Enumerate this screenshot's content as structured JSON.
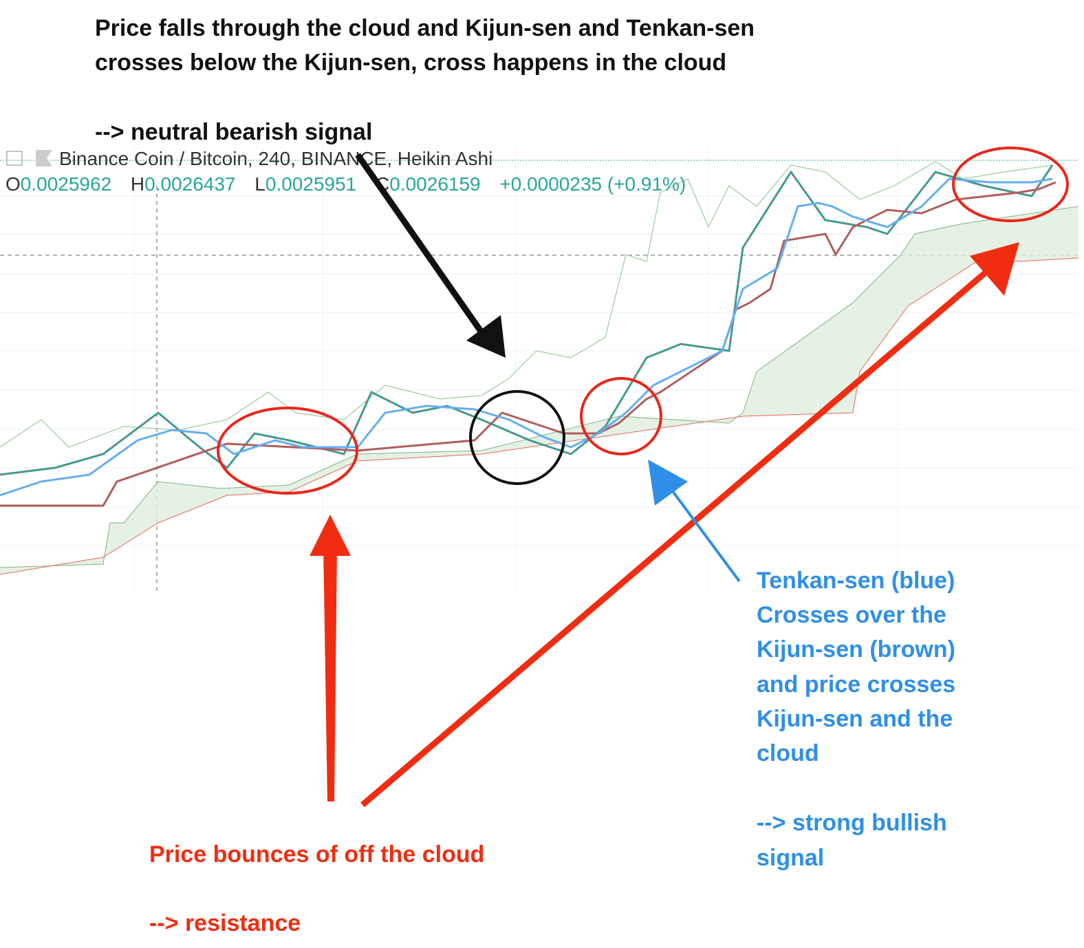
{
  "annotations": {
    "top": {
      "lines": [
        "Price falls through the cloud and Kijun-sen and Tenkan-sen",
        "crosses below the Kijun-sen, cross happens in the cloud"
      ],
      "signal": "--> neutral bearish signal"
    },
    "bottom_left": {
      "line": "Price bounces of off the cloud",
      "signal": "--> resistance"
    },
    "right": {
      "lines": [
        "Tenkan-sen (blue)",
        "Crosses over the",
        "Kijun-sen (brown)",
        "and price crosses",
        "Kijun-sen and the",
        "cloud"
      ],
      "signal_lines": [
        "--> strong bullish",
        "signal"
      ]
    }
  },
  "header": {
    "symbol": "Binance Coin / Bitcoin, 240, BINANCE, Heikin Ashi",
    "ohlc": [
      {
        "label": "O",
        "value": "0.0025962"
      },
      {
        "label": "H",
        "value": "0.0026437"
      },
      {
        "label": "L",
        "value": "0.0025951"
      },
      {
        "label": "C",
        "value": "0.0026159"
      }
    ],
    "change": "+0.0000235 (+0.91%)"
  }
}
